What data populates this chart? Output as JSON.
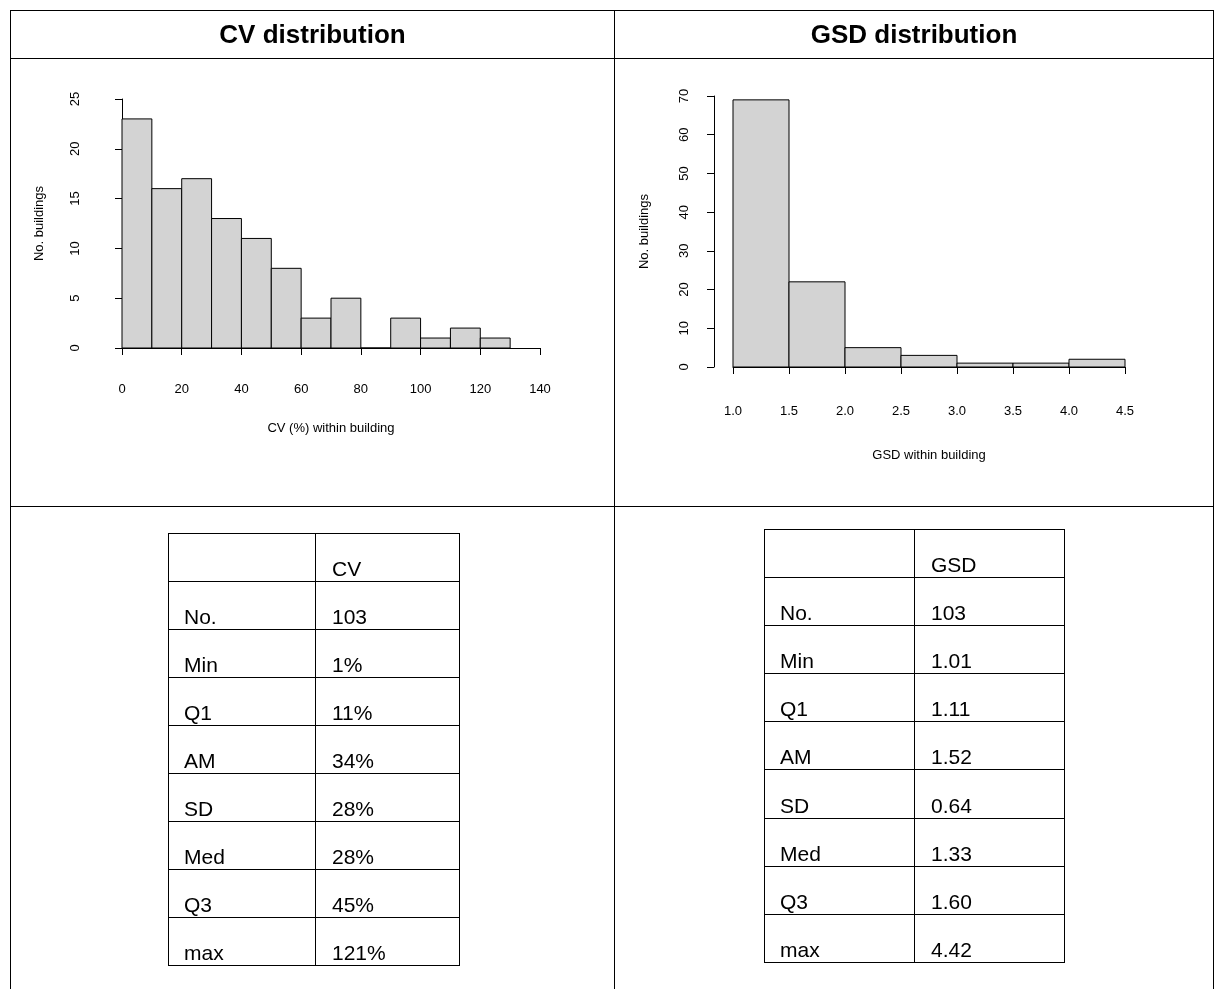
{
  "chart_data": [
    {
      "type": "histogram",
      "title": "CV distribution",
      "xlabel": "CV (%) within building",
      "ylabel": "No. buildings",
      "bins": [
        0,
        10,
        20,
        30,
        40,
        50,
        60,
        70,
        80,
        90,
        100,
        110,
        120,
        130
      ],
      "values": [
        23,
        16,
        17,
        13,
        11,
        8,
        3,
        5,
        0,
        3,
        1,
        2,
        1
      ],
      "color": "#d3d3d3",
      "xlim": [
        0,
        140
      ],
      "ylim": [
        0,
        25
      ],
      "xticks": [
        0,
        20,
        40,
        60,
        80,
        100,
        120,
        140
      ],
      "yticks": [
        0,
        5,
        10,
        15,
        20,
        25
      ]
    },
    {
      "type": "histogram",
      "title": "GSD distribution",
      "xlabel": "GSD within building",
      "ylabel": "No. buildings",
      "bins": [
        1,
        1.5,
        2,
        2.5,
        3,
        3.5,
        4,
        4.5
      ],
      "values": [
        69,
        22,
        5,
        3,
        1,
        1,
        2
      ],
      "color": "#d3d3d3",
      "xlim": [
        1,
        4.5
      ],
      "ylim": [
        0,
        70
      ],
      "xticks": [
        {
          "value": 1,
          "label": "1.0"
        },
        1.5,
        {
          "value": 2,
          "label": "2.0"
        },
        2.5,
        {
          "value": 3,
          "label": "3.0"
        },
        3.5,
        {
          "value": 4,
          "label": "4.0"
        },
        4.5
      ],
      "yticks": [
        0,
        10,
        20,
        30,
        40,
        50,
        60,
        70
      ]
    },
    {
      "type": "other",
      "annotations": [
        "CV",
        "No.",
        "103",
        "Min",
        "1%",
        "Q1",
        "11%",
        "AM",
        "34%",
        "SD",
        "28%",
        "Med",
        "28%",
        "Q3",
        "45%",
        "max",
        "121%"
      ]
    },
    {
      "type": "other",
      "annotations": [
        "GSD",
        "No.",
        "103",
        "Min",
        "1.01",
        "Q1",
        "1.11",
        "AM",
        "1.52",
        "SD",
        "0.64",
        "Med",
        "1.33",
        "Q3",
        "1.60",
        "max",
        "4.42"
      ]
    }
  ]
}
